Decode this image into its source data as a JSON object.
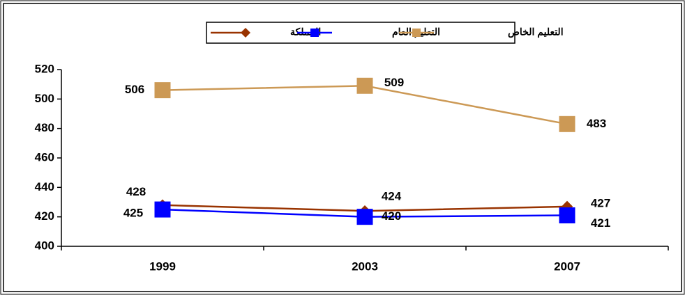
{
  "chart_data": {
    "type": "line",
    "categories": [
      "1999",
      "2003",
      "2007"
    ],
    "series": [
      {
        "name": "المملكة",
        "color": "#993300",
        "marker": "diamond",
        "values": [
          428,
          424,
          427
        ]
      },
      {
        "name": "التعليم العام",
        "color": "#0000ff",
        "marker": "square",
        "values": [
          425,
          420,
          421
        ]
      },
      {
        "name": "التعليم الخاص",
        "color": "#cc9955",
        "marker": "square",
        "values": [
          506,
          509,
          483
        ]
      }
    ],
    "ylim": [
      400,
      520
    ],
    "yticks": [
      400,
      420,
      440,
      460,
      480,
      500,
      520
    ],
    "grid": false,
    "legend": "top"
  }
}
